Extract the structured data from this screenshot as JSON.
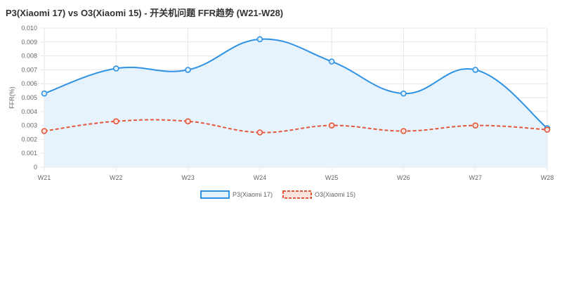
{
  "chart_data": {
    "type": "line",
    "title": "P3(Xiaomi 17) vs O3(Xiaomi 15) - 开关机问题 FFR趋势 (W21-W28)",
    "xlabel": "",
    "ylabel": "FFR(%)",
    "categories": [
      "W21",
      "W22",
      "W23",
      "W24",
      "W25",
      "W26",
      "W27",
      "W28"
    ],
    "ylim": [
      0,
      0.01
    ],
    "yticks": [
      "0",
      "0.001",
      "0.002",
      "0.003",
      "0.004",
      "0.005",
      "0.006",
      "0.007",
      "0.008",
      "0.009",
      "0.010"
    ],
    "grid": true,
    "legend_position": "bottom",
    "series": [
      {
        "name": "P3(Xiaomi 17)",
        "values": [
          0.0053,
          0.0071,
          0.007,
          0.0092,
          0.0076,
          0.0053,
          0.007,
          0.0028
        ],
        "color": "#2f92e4",
        "fill": "#e3f1fc",
        "dashed": false
      },
      {
        "name": "O3(Xiaomi 15)",
        "values": [
          0.0026,
          0.0033,
          0.0033,
          0.0025,
          0.003,
          0.0026,
          0.003,
          0.0027
        ],
        "color": "#e5573a",
        "fill": "",
        "dashed": true
      }
    ]
  }
}
